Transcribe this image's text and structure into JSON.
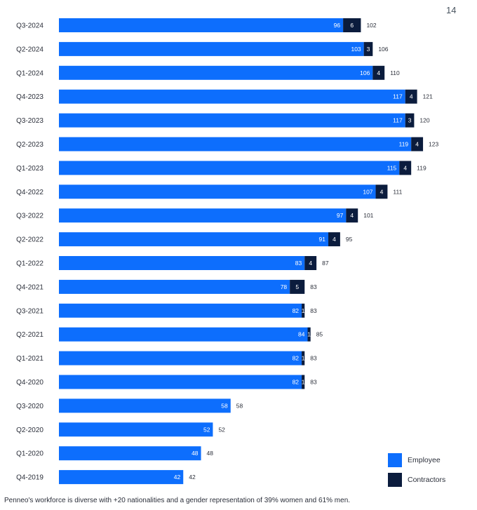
{
  "page_number": "14",
  "footnote": "Penneo's workforce is diverse with +20 nationalities and a gender representation of 39% women and 61% men.",
  "legend": {
    "employee": {
      "label": "Employee",
      "color": "#0d6efd"
    },
    "contractors": {
      "label": "Contractors",
      "color": "#0b1c3d"
    }
  },
  "chart_data": {
    "type": "bar",
    "orientation": "horizontal",
    "stacked": true,
    "categories": [
      "Q3-2024",
      "Q2-2024",
      "Q1-2024",
      "Q4-2023",
      "Q3-2023",
      "Q2-2023",
      "Q1-2023",
      "Q4-2022",
      "Q3-2022",
      "Q2-2022",
      "Q1-2022",
      "Q4-2021",
      "Q3-2021",
      "Q2-2021",
      "Q1-2021",
      "Q4-2020",
      "Q3-2020",
      "Q2-2020",
      "Q1-2020",
      "Q4-2019"
    ],
    "series": [
      {
        "name": "Employee",
        "color": "#0d6efd",
        "values": [
          96,
          103,
          106,
          117,
          117,
          119,
          115,
          107,
          97,
          91,
          83,
          78,
          82,
          84,
          82,
          82,
          58,
          52,
          48,
          42
        ],
        "labels": [
          "96",
          "103",
          "106",
          "117",
          "117",
          "119",
          "115",
          "107",
          "97",
          "91",
          "83",
          "78",
          "82",
          "84",
          "82",
          "82",
          "58",
          "52",
          "48",
          "42"
        ]
      },
      {
        "name": "Contractors",
        "color": "#0b1c3d",
        "values": [
          6,
          3,
          4,
          4,
          3,
          4,
          4,
          4,
          4,
          4,
          4,
          5,
          1,
          1,
          1,
          1,
          0,
          0,
          0,
          0
        ],
        "labels": [
          "6",
          "3",
          "4",
          "4",
          "3",
          "4",
          "4",
          "4",
          "4",
          "4",
          "4",
          "5",
          "1",
          "1",
          "1",
          "1",
          "",
          "",
          "",
          ""
        ]
      }
    ],
    "totals": [
      102,
      106,
      110,
      121,
      120,
      123,
      119,
      111,
      101,
      95,
      87,
      83,
      83,
      85,
      83,
      83,
      58,
      52,
      48,
      42
    ],
    "total_labels": [
      "102",
      "106",
      "110",
      "121",
      "120",
      "123",
      "119",
      "111",
      "101",
      "95",
      "87",
      "83",
      "83",
      "85",
      "83",
      "83",
      "58",
      "52",
      "48",
      "42"
    ],
    "grid": false,
    "legend_position": "bottom-right"
  }
}
